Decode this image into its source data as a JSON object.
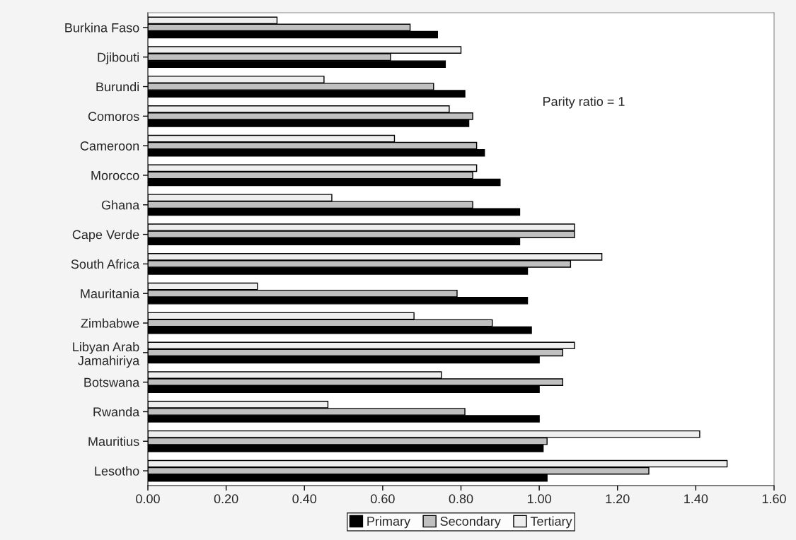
{
  "chart_data": {
    "type": "bar",
    "orientation": "horizontal",
    "categories": [
      "Burkina Faso",
      "Djibouti",
      "Burundi",
      "Comoros",
      "Cameroon",
      "Morocco",
      "Ghana",
      "Cape Verde",
      "South Africa",
      "Mauritania",
      "Zimbabwe",
      "Libyan Arab\nJamahiriya",
      "Botswana",
      "Rwanda",
      "Mauritius",
      "Lesotho"
    ],
    "series": [
      {
        "name": "Primary",
        "color": "#000000",
        "values": [
          0.74,
          0.76,
          0.81,
          0.82,
          0.86,
          0.9,
          0.95,
          0.95,
          0.97,
          0.97,
          0.98,
          1.0,
          1.0,
          1.0,
          1.01,
          1.02
        ]
      },
      {
        "name": "Secondary",
        "color": "#c0c0c0",
        "values": [
          0.67,
          0.62,
          0.73,
          0.83,
          0.84,
          0.83,
          0.83,
          1.09,
          1.08,
          0.79,
          0.88,
          1.06,
          1.06,
          0.81,
          1.02,
          1.28
        ]
      },
      {
        "name": "Tertiary",
        "color": "#eeeeee",
        "values": [
          0.33,
          0.8,
          0.45,
          0.77,
          0.63,
          0.84,
          0.47,
          1.09,
          1.16,
          0.28,
          0.68,
          1.09,
          0.75,
          0.46,
          1.41,
          1.48
        ]
      }
    ],
    "xlim": [
      0,
      1.6
    ],
    "xticks": [
      {
        "value": 0,
        "label": "0.00"
      },
      {
        "value": 0.2,
        "label": "0.20"
      },
      {
        "value": 0.4,
        "label": "0.40"
      },
      {
        "value": 0.6,
        "label": "0.60"
      },
      {
        "value": 0.8,
        "label": "0.80"
      },
      {
        "value": 1.0,
        "label": "1.00"
      },
      {
        "value": 1.2,
        "label": "1.20"
      },
      {
        "value": 1.4,
        "label": "1.40"
      },
      {
        "value": 1.6,
        "label": "1.60"
      }
    ],
    "annotations": [
      "Parity ratio = 1"
    ],
    "grid": false,
    "legend": "bottom"
  }
}
